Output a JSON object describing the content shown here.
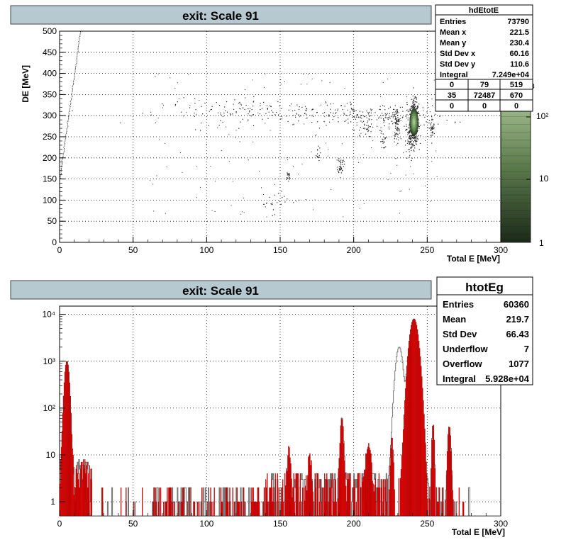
{
  "top_panel": {
    "title": "exit: Scale 91",
    "stats": {
      "name": "hdEtotE",
      "rows": [
        {
          "label": "Entries",
          "value": "73790"
        },
        {
          "label": "Mean x",
          "value": "221.5"
        },
        {
          "label": "Mean y",
          "value": "230.4"
        },
        {
          "label": "Std Dev x",
          "value": "60.16"
        },
        {
          "label": "Std Dev y",
          "value": "110.6"
        },
        {
          "label": "Integral",
          "value": "7.249e+04"
        }
      ],
      "grid": [
        [
          "0",
          "79",
          "519"
        ],
        [
          "35",
          "72487",
          "670"
        ],
        [
          "0",
          "0",
          "0"
        ]
      ]
    },
    "palette_labels": [
      "10²",
      "10",
      "1"
    ],
    "palette_exponent": "3"
  },
  "bottom_panel": {
    "title": "exit: Scale 91",
    "stats": {
      "name": "htotEg",
      "rows": [
        {
          "label": "Entries",
          "value": "60360"
        },
        {
          "label": "Mean",
          "value": "219.7"
        },
        {
          "label": "Std Dev",
          "value": "66.43"
        },
        {
          "label": "Underflow",
          "value": "7"
        },
        {
          "label": "Overflow",
          "value": "1077"
        },
        {
          "label": "Integral",
          "value": "5.928e+04"
        }
      ]
    }
  },
  "colors": {
    "title_box": "#b6c8d0",
    "scatter_dot": "#222222",
    "cluster_dark": "#2f4a2a",
    "cluster_light": "#9ec08a",
    "hist_red": "#ff0000",
    "hist_gray": "#666666"
  },
  "chart_data": [
    {
      "type": "scatter",
      "xlabel": "Total E [MeV]",
      "ylabel": "DE [MeV]",
      "xlim": [
        0,
        300
      ],
      "ylim": [
        0,
        500
      ],
      "xticks": [
        "0",
        "50",
        "100",
        "150",
        "200",
        "250",
        "300"
      ],
      "yticks": [
        "0",
        "50",
        "100",
        "150",
        "200",
        "250",
        "300",
        "350",
        "400",
        "450",
        "500"
      ],
      "grid": true,
      "z_scale": "log",
      "clusters": [
        {
          "x": 241,
          "y": 285,
          "sx": 1.5,
          "sy": 25,
          "n": 500,
          "note": "dense"
        },
        {
          "x": 229,
          "y": 280,
          "sx": 1.2,
          "sy": 20,
          "n": 80
        },
        {
          "x": 238,
          "y": 240,
          "sx": 1.5,
          "sy": 25,
          "n": 70
        },
        {
          "x": 253,
          "y": 270,
          "sx": 1,
          "sy": 12,
          "n": 40
        },
        {
          "x": 191,
          "y": 185,
          "sx": 1,
          "sy": 10,
          "n": 40
        },
        {
          "x": 155,
          "y": 155,
          "sx": 1,
          "sy": 8,
          "n": 20
        },
        {
          "x": 175,
          "y": 210,
          "sx": 1,
          "sy": 8,
          "n": 15
        },
        {
          "x": 208,
          "y": 270,
          "sx": 2,
          "sy": 10,
          "n": 25
        },
        {
          "x": 220,
          "y": 240,
          "sx": 1,
          "sy": 10,
          "n": 20
        },
        {
          "x": 215,
          "y": 300,
          "sx": 25,
          "sy": 15,
          "n": 200
        },
        {
          "x": 140,
          "y": 310,
          "sx": 35,
          "sy": 15,
          "n": 150
        },
        {
          "x": 145,
          "y": 100,
          "sx": 5,
          "sy": 15,
          "n": 20
        }
      ],
      "diagonal_line": {
        "x0": 0,
        "y0": 150,
        "x1": 14,
        "y1": 500
      }
    },
    {
      "type": "bar",
      "xlabel": "Total E [MeV]",
      "ylabel": "",
      "xlim": [
        0,
        300
      ],
      "ylim": [
        0.5,
        15000
      ],
      "y_scale": "log",
      "xticks": [
        "0",
        "50",
        "100",
        "150",
        "200",
        "250",
        "300"
      ],
      "yticks": [
        "1",
        "10",
        "10²",
        "10³",
        "10⁴"
      ],
      "grid": true,
      "series": [
        {
          "style": "filled-red",
          "peaks": [
            {
              "x": 5,
              "h": 1000,
              "w": 1.2
            },
            {
              "x": 241,
              "h": 8000,
              "w": 2.2
            },
            {
              "x": 254,
              "h": 45,
              "w": 0.6
            },
            {
              "x": 265,
              "h": 40,
              "w": 0.8
            },
            {
              "x": 192,
              "h": 60,
              "w": 0.8
            },
            {
              "x": 226,
              "h": 20,
              "w": 0.8
            },
            {
              "x": 210,
              "h": 15,
              "w": 1.5
            },
            {
              "x": 156,
              "h": 12,
              "w": 0.8
            },
            {
              "x": 170,
              "h": 8,
              "w": 1
            }
          ]
        },
        {
          "style": "outline-gray",
          "peaks": [
            {
              "x": 5,
              "h": 1000,
              "w": 1.2
            },
            {
              "x": 231,
              "h": 2000,
              "w": 1.8
            },
            {
              "x": 241,
              "h": 8000,
              "w": 2.2
            },
            {
              "x": 254,
              "h": 45,
              "w": 0.6
            },
            {
              "x": 265,
              "h": 40,
              "w": 0.8
            },
            {
              "x": 192,
              "h": 60,
              "w": 0.8
            }
          ]
        }
      ]
    }
  ]
}
